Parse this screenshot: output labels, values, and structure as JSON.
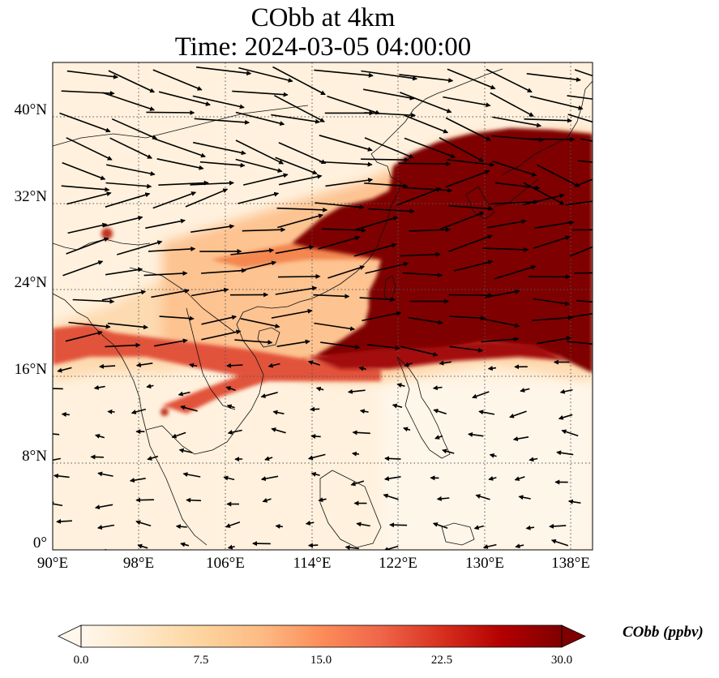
{
  "title": {
    "line1": "CObb at 4km",
    "line2": "Time: 2024-03-05 04:00:00"
  },
  "map": {
    "lon_range": [
      90,
      140
    ],
    "lat_range": [
      0,
      45
    ],
    "lon_ticks": [
      "90°E",
      "98°E",
      "106°E",
      "114°E",
      "122°E",
      "130°E",
      "138°E"
    ],
    "lat_ticks": [
      "0°",
      "8°N",
      "16°N",
      "24°N",
      "32°N",
      "40°N"
    ],
    "gridlines": "dotted",
    "colormap": "OrRd",
    "variable": "CObb",
    "vectors": "wind",
    "plume_core_color": "#7f0000",
    "background_color": "#fff1dd"
  },
  "colorbar": {
    "label": "CObb (ppbv)",
    "ticks": [
      "0.0",
      "7.5",
      "15.0",
      "22.5",
      "30.0"
    ],
    "range": [
      0,
      30
    ],
    "extend": "both",
    "colors": [
      "#fff7ec",
      "#fee8c8",
      "#fdd49e",
      "#fdbb84",
      "#fc8d59",
      "#ef6548",
      "#d7301f",
      "#b30000",
      "#7f0000"
    ]
  }
}
